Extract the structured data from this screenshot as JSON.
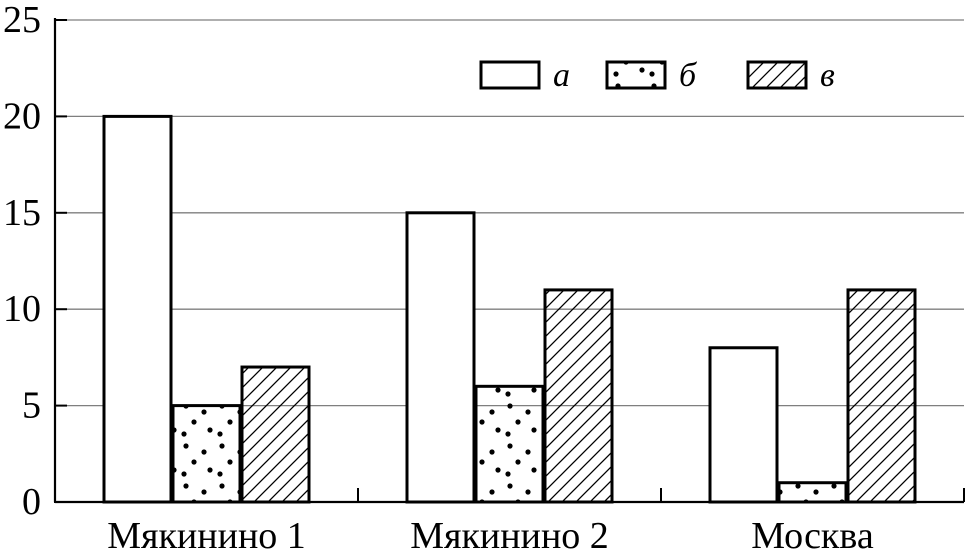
{
  "chart_data": {
    "type": "bar",
    "title": "",
    "xlabel": "",
    "ylabel": "",
    "ylim": [
      0,
      25
    ],
    "yticks": [
      0,
      5,
      10,
      15,
      20,
      25
    ],
    "grid": true,
    "legend_position": "top-right",
    "categories": [
      "Мякинино 1",
      "Мякинино 2",
      "Москва"
    ],
    "series": [
      {
        "name": "а",
        "pattern": "empty",
        "values": [
          20,
          15,
          8
        ]
      },
      {
        "name": "б",
        "pattern": "dots",
        "values": [
          5,
          6,
          1
        ]
      },
      {
        "name": "в",
        "pattern": "hatch",
        "values": [
          7,
          11,
          11
        ]
      }
    ]
  },
  "colors": {
    "stroke": "#000000",
    "grid": "#7f7f7f",
    "fill": "#ffffff"
  }
}
